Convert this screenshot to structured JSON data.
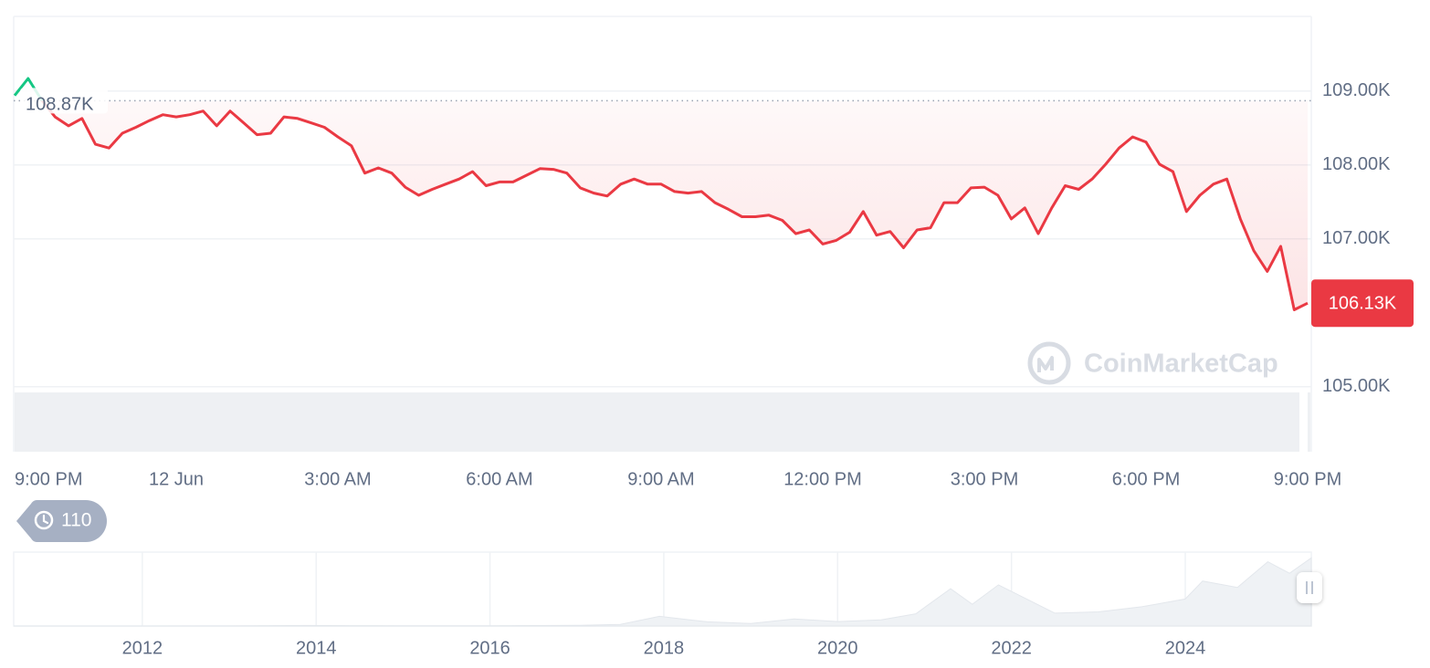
{
  "chart_data": [
    {
      "type": "line",
      "x": [
        21,
        21.25,
        21.5,
        21.75,
        22,
        22.25,
        22.5,
        22.75,
        23,
        23.25,
        23.5,
        23.75,
        24,
        24.25,
        24.5,
        24.75,
        25,
        25.25,
        25.5,
        25.75,
        26,
        26.25,
        26.5,
        26.75,
        27,
        27.25,
        27.5,
        27.75,
        28,
        28.25,
        28.5,
        28.75,
        29,
        29.25,
        29.5,
        29.75,
        30,
        30.25,
        30.5,
        30.75,
        31,
        31.25,
        31.5,
        31.75,
        32,
        32.25,
        32.5,
        32.75,
        33,
        33.25,
        33.5,
        33.75,
        34,
        34.25,
        34.5,
        34.75,
        35,
        35.25,
        35.5,
        35.75,
        36,
        36.25,
        36.5,
        36.75,
        37,
        37.25,
        37.5,
        37.75,
        38,
        38.25,
        38.5,
        38.75,
        39,
        39.25,
        39.5,
        39.75,
        40,
        40.25,
        40.5,
        40.75,
        41,
        41.25,
        41.5,
        41.75,
        42,
        42.25,
        42.5,
        42.75,
        43,
        43.25,
        43.5,
        43.75,
        44,
        44.25,
        44.5,
        44.75,
        45
      ],
      "series": [
        {
          "color": "#ea3943",
          "values": [
            108940,
            109170,
            108880,
            108650,
            108530,
            108630,
            108280,
            108230,
            108430,
            108510,
            108600,
            108680,
            108650,
            108680,
            108730,
            108530,
            108730,
            108570,
            108410,
            108430,
            108650,
            108630,
            108570,
            108510,
            108380,
            108260,
            107890,
            107960,
            107890,
            107700,
            107590,
            107670,
            107740,
            107810,
            107910,
            107720,
            107770,
            107770,
            107860,
            107950,
            107940,
            107890,
            107690,
            107620,
            107580,
            107740,
            107810,
            107740,
            107740,
            107640,
            107620,
            107640,
            107490,
            107400,
            107300,
            107300,
            107320,
            107250,
            107070,
            107120,
            106930,
            106980,
            107090,
            107370,
            107050,
            107100,
            106880,
            107120,
            107150,
            107490,
            107490,
            107690,
            107700,
            107590,
            107270,
            107420,
            107070,
            107420,
            107720,
            107670,
            107810,
            108010,
            108230,
            108380,
            108310,
            108010,
            107910,
            107370,
            107590,
            107740,
            107810,
            107270,
            106840,
            106560,
            106900,
            106040,
            106130
          ]
        }
      ],
      "up_color": "#16c784",
      "xlim": [
        21,
        45
      ],
      "xticks": [
        {
          "value": 21,
          "label": "9:00 PM"
        },
        {
          "value": 24,
          "label": "12 Jun"
        },
        {
          "value": 27,
          "label": "3:00 AM"
        },
        {
          "value": 30,
          "label": "6:00 AM"
        },
        {
          "value": 33,
          "label": "9:00 AM"
        },
        {
          "value": 36,
          "label": "12:00 PM"
        },
        {
          "value": 39,
          "label": "3:00 PM"
        },
        {
          "value": 42,
          "label": "6:00 PM"
        },
        {
          "value": 45,
          "label": "9:00 PM"
        }
      ],
      "ylim": [
        104120,
        110010
      ],
      "yticks": [
        {
          "value": 105000,
          "label": "105.00K"
        },
        {
          "value": 107000,
          "label": "107.00K"
        },
        {
          "value": 108000,
          "label": "108.00K"
        },
        {
          "value": 109000,
          "label": "109.00K"
        }
      ],
      "grid": true,
      "reference": {
        "value": 108870,
        "label": "108.87K"
      },
      "current": {
        "value": 106130,
        "label": "106.13K"
      }
    },
    {
      "type": "area",
      "x": [
        2010.52,
        2012,
        2013,
        2013.9,
        2015,
        2016,
        2017,
        2017.5,
        2017.95,
        2018.5,
        2019,
        2019.5,
        2020,
        2020.5,
        2020.9,
        2021.3,
        2021.55,
        2021.85,
        2022.5,
        2023,
        2023.5,
        2024,
        2024.2,
        2024.6,
        2024.95,
        2025.2,
        2025.45
      ],
      "values": [
        0,
        10,
        100,
        900,
        250,
        400,
        1000,
        2500,
        15000,
        6500,
        3800,
        11000,
        7000,
        9500,
        19000,
        58000,
        34000,
        64000,
        20000,
        22000,
        30000,
        42000,
        70000,
        60000,
        100000,
        82000,
        106000
      ],
      "color": "#eff2f5",
      "xlim": [
        2010.52,
        2025.45
      ],
      "xticks": [
        2012,
        2014,
        2016,
        2018,
        2020,
        2022,
        2024
      ],
      "ylim": [
        0,
        115000
      ]
    }
  ],
  "watermark": "CoinMarketCap",
  "history_count": 110
}
